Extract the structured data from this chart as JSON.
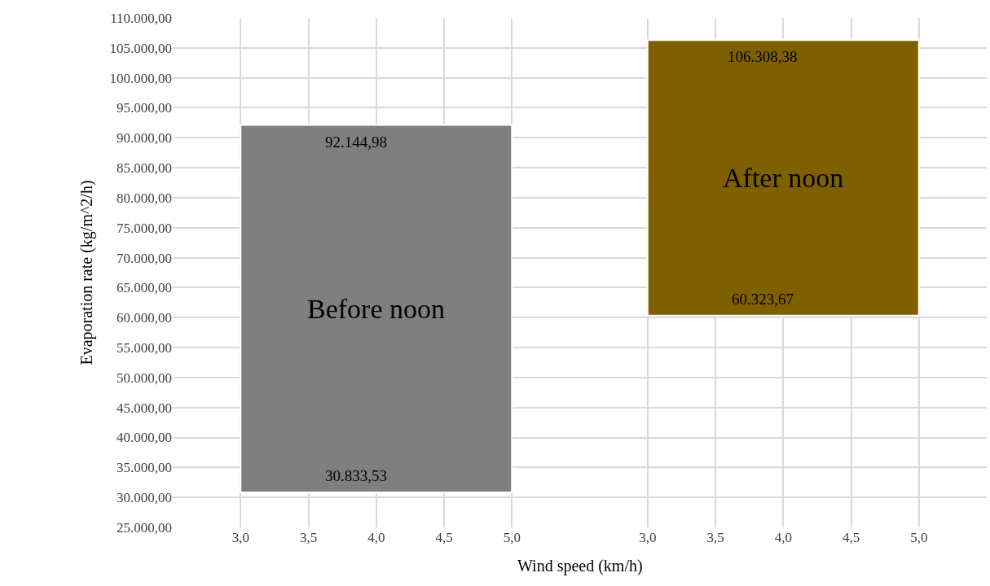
{
  "chart_data": [
    {
      "type": "bar",
      "xlabel": "Wind speed (km/h)",
      "ylabel": "Evaporation rate (kg/m^2/h)",
      "x": [
        4
      ],
      "xlim": [
        2.5,
        5.5
      ],
      "xticks": [
        {
          "value": 3,
          "label": "3,0"
        },
        {
          "value": 3.5,
          "label": "3,5"
        },
        {
          "value": 4,
          "label": "4,0"
        },
        {
          "value": 4.5,
          "label": "4,5"
        },
        {
          "value": 5,
          "label": "5,0"
        }
      ],
      "ylim": [
        25000,
        110000
      ],
      "yticks": [
        {
          "value": 25000,
          "label": "25.000,00"
        },
        {
          "value": 30000,
          "label": "30.000,00"
        },
        {
          "value": 35000,
          "label": "35.000,00"
        },
        {
          "value": 40000,
          "label": "40.000,00"
        },
        {
          "value": 45000,
          "label": "45.000,00"
        },
        {
          "value": 50000,
          "label": "50.000,00"
        },
        {
          "value": 55000,
          "label": "55.000,00"
        },
        {
          "value": 60000,
          "label": "60.000,00"
        },
        {
          "value": 65000,
          "label": "65.000,00"
        },
        {
          "value": 70000,
          "label": "70.000,00"
        },
        {
          "value": 75000,
          "label": "75.000,00"
        },
        {
          "value": 80000,
          "label": "80.000,00"
        },
        {
          "value": 85000,
          "label": "85.000,00"
        },
        {
          "value": 90000,
          "label": "90.000,00"
        },
        {
          "value": 95000,
          "label": "95.000,00"
        },
        {
          "value": 100000,
          "label": "100.000,00"
        },
        {
          "value": 105000,
          "label": "105.000,00"
        },
        {
          "value": 110000,
          "label": "110.000,00"
        }
      ],
      "grid": true,
      "legend": false,
      "series": [
        {
          "name": "Before noon",
          "color": "#7f7f7f",
          "values": [
            61311.45
          ],
          "base": [
            30833.53
          ]
        }
      ],
      "annotations": [
        {
          "text": "92.144,98",
          "y": 92144.98
        },
        {
          "text": "30.833,53",
          "y": 30833.53
        }
      ]
    },
    {
      "type": "bar",
      "x": [
        4
      ],
      "xlim": [
        2.5,
        5.5
      ],
      "xticks": [
        {
          "value": 3,
          "label": "3,0"
        },
        {
          "value": 3.5,
          "label": "3,5"
        },
        {
          "value": 4,
          "label": "4,0"
        },
        {
          "value": 4.5,
          "label": "4,5"
        },
        {
          "value": 5,
          "label": "5,0"
        }
      ],
      "ylim": [
        25000,
        110000
      ],
      "tick_labels": "x",
      "grid": true,
      "legend": false,
      "series": [
        {
          "name": "After noon",
          "color": "#7f6000",
          "values": [
            45984.71
          ],
          "base": [
            60323.67
          ]
        }
      ],
      "annotations": [
        {
          "text": "106.308,38",
          "y": 106308.38
        },
        {
          "text": "60.323,67",
          "y": 60323.67
        }
      ]
    }
  ]
}
